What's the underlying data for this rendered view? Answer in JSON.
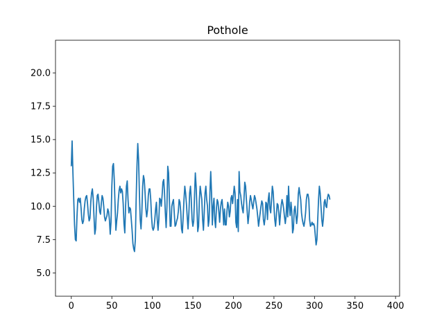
{
  "chart_data": {
    "type": "line",
    "title": "Pothole",
    "xlabel": "",
    "ylabel": "",
    "xlim": [
      -19.5,
      405
    ],
    "ylim": [
      3.25,
      22.45
    ],
    "xticks": [
      0,
      50,
      100,
      150,
      200,
      250,
      300,
      350,
      400
    ],
    "xtick_labels": [
      "0",
      "50",
      "100",
      "150",
      "200",
      "250",
      "300",
      "350",
      "400"
    ],
    "yticks": [
      5.0,
      7.5,
      10.0,
      12.5,
      15.0,
      17.5,
      20.0
    ],
    "ytick_labels": [
      "5.0",
      "7.5",
      "10.0",
      "12.5",
      "15.0",
      "17.5",
      "20.0"
    ],
    "grid": false,
    "line_color": "#1f77b4",
    "x_start": 0,
    "x_step": 1,
    "series": [
      {
        "values": [
          13.0,
          14.9,
          12.5,
          10.5,
          8.6,
          7.5,
          7.4,
          9.2,
          10.5,
          10.6,
          10.3,
          10.6,
          9.9,
          9.0,
          8.7,
          8.9,
          9.8,
          10.4,
          10.7,
          10.8,
          10.2,
          9.4,
          8.9,
          9.1,
          10.3,
          11.0,
          11.3,
          10.6,
          9.2,
          7.9,
          8.3,
          9.9,
          10.8,
          10.9,
          10.3,
          9.6,
          9.4,
          10.2,
          10.8,
          10.6,
          10.0,
          9.2,
          8.9,
          9.1,
          9.3,
          9.8,
          9.6,
          9.0,
          7.9,
          8.8,
          11.5,
          13.0,
          13.2,
          12.0,
          10.0,
          8.2,
          8.9,
          9.5,
          10.5,
          11.2,
          11.5,
          11.0,
          11.3,
          11.1,
          10.2,
          8.7,
          8.0,
          10.0,
          11.5,
          11.9,
          10.5,
          9.5,
          9.9,
          9.8,
          9.0,
          8.2,
          7.2,
          6.8,
          6.6,
          7.5,
          10.5,
          13.0,
          14.7,
          13.5,
          11.0,
          9.0,
          8.3,
          9.5,
          11.5,
          12.3,
          12.0,
          11.0,
          9.8,
          9.2,
          9.7,
          10.8,
          11.3,
          11.3,
          10.5,
          9.2,
          8.4,
          8.2,
          8.4,
          9.0,
          9.8,
          10.3,
          9.0,
          8.2,
          9.0,
          10.6,
          10.5,
          10.0,
          10.8,
          11.8,
          12.0,
          11.0,
          9.5,
          8.4,
          10.0,
          13.0,
          12.5,
          10.5,
          8.5,
          8.5,
          10.0,
          10.3,
          10.5,
          9.5,
          8.5,
          8.6,
          8.9,
          9.1,
          9.6,
          10.5,
          10.3,
          9.6,
          8.3,
          8.0,
          9.2,
          10.5,
          11.5,
          11.0,
          10.2,
          9.2,
          8.3,
          9.4,
          11.0,
          11.5,
          10.5,
          9.0,
          8.5,
          8.9,
          10.8,
          12.5,
          11.5,
          9.8,
          8.1,
          8.5,
          10.5,
          11.5,
          11.0,
          10.5,
          9.0,
          8.2,
          9.5,
          11.0,
          11.5,
          10.5,
          10.0,
          8.5,
          9.0,
          11.0,
          12.6,
          11.0,
          8.6,
          10.0,
          10.6,
          9.0,
          8.4,
          9.8,
          10.5,
          10.3,
          9.6,
          8.8,
          9.8,
          10.3,
          10.5,
          9.7,
          8.6,
          9.8,
          8.6,
          8.6,
          9.6,
          10.3,
          10.0,
          9.2,
          9.6,
          10.6,
          10.8,
          10.2
        ]
      }
    ],
    "series_tail": [
      10.8,
      11.5,
      11.0,
      8.8,
      8.4,
      10.5,
      8.1,
      12.6,
      11.1,
      10.8,
      10.2,
      9.8,
      9.5,
      10.5,
      11.8,
      11.5,
      10.5,
      9.6,
      8.7,
      9.3,
      10.3,
      10.8,
      10.5,
      10.1,
      9.8,
      10.3,
      10.8,
      10.6,
      10.2,
      9.8,
      9.2,
      8.5,
      9.0,
      9.5,
      10.0,
      10.4,
      10.2,
      9.0,
      8.6,
      9.1,
      10.3,
      10.2,
      9.0,
      10.5,
      11.0,
      9.8,
      9.5,
      10.5,
      11.5,
      11.1,
      10.0,
      9.0,
      8.5,
      9.3,
      10.2,
      10.1,
      9.5,
      8.6,
      9.4,
      10.1,
      10.5,
      10.2,
      9.8,
      9.2,
      8.7,
      9.3,
      10.8,
      9.2,
      11.5,
      10.0,
      9.3,
      10.3,
      9.6,
      8.0,
      8.3,
      9.7,
      10.0,
      9.4,
      8.7,
      9.3,
      10.9,
      11.4,
      10.9,
      10.5,
      9.5,
      9.0,
      8.7,
      8.5,
      8.9,
      9.5,
      10.5,
      10.9,
      10.9,
      10.5,
      9.0,
      8.5,
      8.6,
      8.8,
      8.6,
      8.7,
      8.5,
      7.8,
      7.1,
      7.5,
      9.0,
      10.5,
      11.5,
      11.0,
      10.0,
      9.0,
      8.5,
      9.1,
      10.3,
      10.5,
      10.0,
      9.9,
      10.6,
      10.9,
      10.8,
      10.5
    ]
  }
}
